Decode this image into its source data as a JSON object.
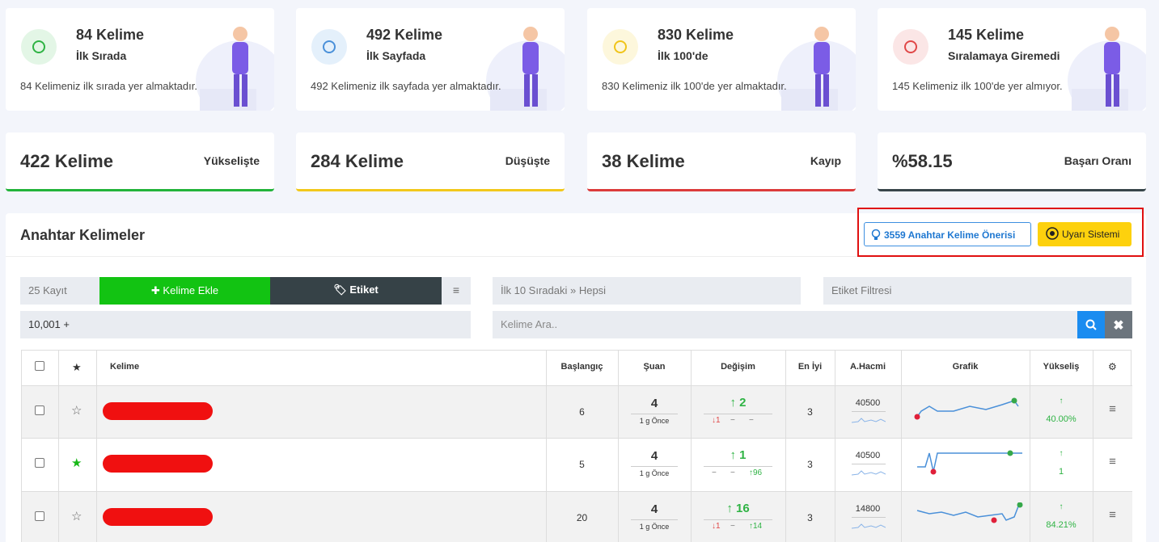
{
  "cards": [
    {
      "title": "84 Kelime",
      "subtitle": "İlk Sırada",
      "description": "84 Kelimeniz ilk sırada yer almaktadır."
    },
    {
      "title": "492 Kelime",
      "subtitle": "İlk Sayfada",
      "description": "492 Kelimeniz ilk sayfada yer almaktadır."
    },
    {
      "title": "830 Kelime",
      "subtitle": "İlk 100'de",
      "description": "830 Kelimeniz ilk 100'de yer almaktadır."
    },
    {
      "title": "145 Kelime",
      "subtitle": "Sıralamaya Giremedi",
      "description": "145 Kelimeniz ilk 100'de yer almıyor."
    }
  ],
  "stats": [
    {
      "value": "422 Kelime",
      "label": "Yükselişte",
      "color": "#22b33a"
    },
    {
      "value": "284 Kelime",
      "label": "Düşüşte",
      "color": "#f2c81b"
    },
    {
      "value": "38 Kelime",
      "label": "Kayıp",
      "color": "#dc3b3b"
    },
    {
      "value": "%58.15",
      "label": "Başarı Oranı",
      "color": "#38454a"
    }
  ],
  "panel": {
    "title": "Anahtar Kelimeler",
    "suggest_button": "3559 Anahtar Kelime Önerisi",
    "alert_button": "Uyarı Sistemi"
  },
  "controls": {
    "page_size": "25 Kayıt",
    "add_button": "Kelime Ekle",
    "tag_button": "Etiket",
    "rank_filter": "İlk 10 Sıradaki » Hepsi",
    "tag_filter": "Etiket Filtresi",
    "volume_filter": "10,001 +",
    "search_placeholder": "Kelime Ara.."
  },
  "table": {
    "headers": [
      "Kelime",
      "Başlangıç",
      "Şuan",
      "Değişim",
      "En İyi",
      "A.Hacmi",
      "Grafik",
      "Yükseliş"
    ],
    "rows": [
      {
        "starred": false,
        "start": 6,
        "current": 4,
        "updated": "1 g Önce",
        "change": 2,
        "change_details": [
          {
            "dir": "down",
            "value": 1
          },
          {
            "dir": "neutral"
          },
          {
            "dir": "neutral"
          }
        ],
        "best": 3,
        "volume": 40500,
        "rise": "40.00%"
      },
      {
        "starred": true,
        "start": 5,
        "current": 4,
        "updated": "1 g Önce",
        "change": 1,
        "change_details": [
          {
            "dir": "neutral"
          },
          {
            "dir": "neutral"
          },
          {
            "dir": "up",
            "value": 96
          }
        ],
        "best": 3,
        "volume": 40500,
        "rise": "1"
      },
      {
        "starred": false,
        "start": 20,
        "current": 4,
        "updated": "1 g Önce",
        "change": 16,
        "change_details": [
          {
            "dir": "down",
            "value": 1
          },
          {
            "dir": "neutral"
          },
          {
            "dir": "up",
            "value": 14
          }
        ],
        "best": 3,
        "volume": 14800,
        "rise": "84.21%"
      }
    ]
  }
}
